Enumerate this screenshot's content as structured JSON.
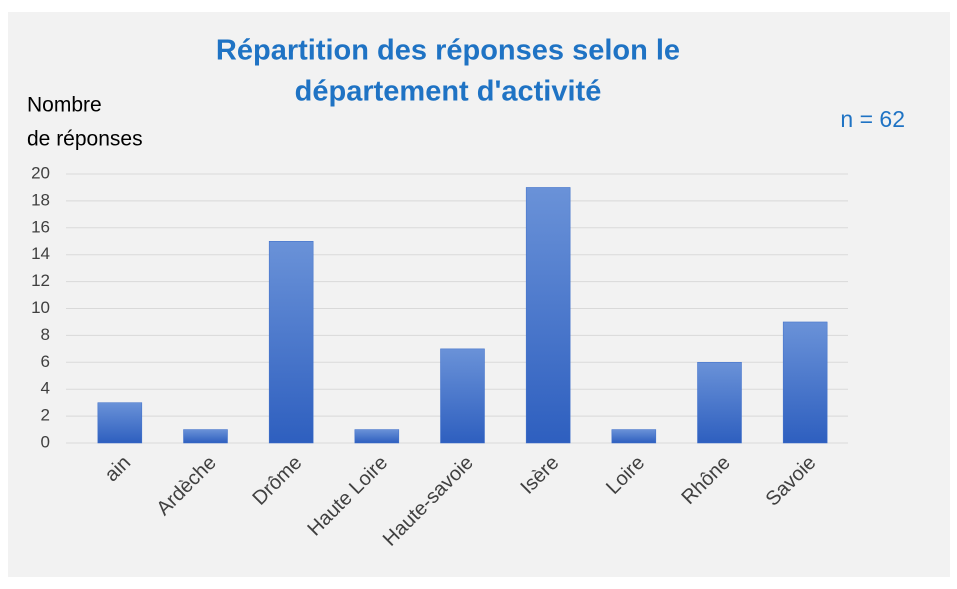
{
  "chart_data": {
    "type": "bar",
    "title": [
      "Répartition des réponses selon le",
      "département d'activité"
    ],
    "ylabel": [
      "Nombre",
      "de réponses"
    ],
    "annotation": "n = 62",
    "categories": [
      "ain",
      "Ardèche",
      "Drôme",
      "Haute Loire",
      "Haute-savoie",
      "Isère",
      "Loire",
      "Rhône",
      "Savoie"
    ],
    "values": [
      3,
      1,
      15,
      1,
      7,
      19,
      1,
      6,
      9
    ],
    "color": "#3a6cc9",
    "ylim": [
      0,
      20
    ],
    "yticks": [
      0,
      2,
      4,
      6,
      8,
      10,
      12,
      14,
      16,
      18,
      20
    ],
    "grid": true
  }
}
